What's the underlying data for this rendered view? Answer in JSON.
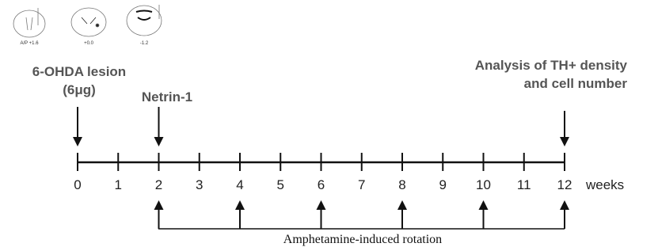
{
  "sections": [
    "A/P +1.6",
    "+0.0",
    "-1.2"
  ],
  "events": {
    "lesion": [
      "6-OHDA lesion",
      "(6μg)"
    ],
    "treatment": "Netrin-1",
    "analysis": [
      "Analysis  of TH+ density",
      "and cell number"
    ]
  },
  "timeline": {
    "ticks": [
      "0",
      "1",
      "2",
      "3",
      "4",
      "5",
      "6",
      "7",
      "8",
      "9",
      "10",
      "11",
      "12"
    ],
    "unit": "weeks"
  },
  "rotation": "Amphetamine-induced rotation"
}
